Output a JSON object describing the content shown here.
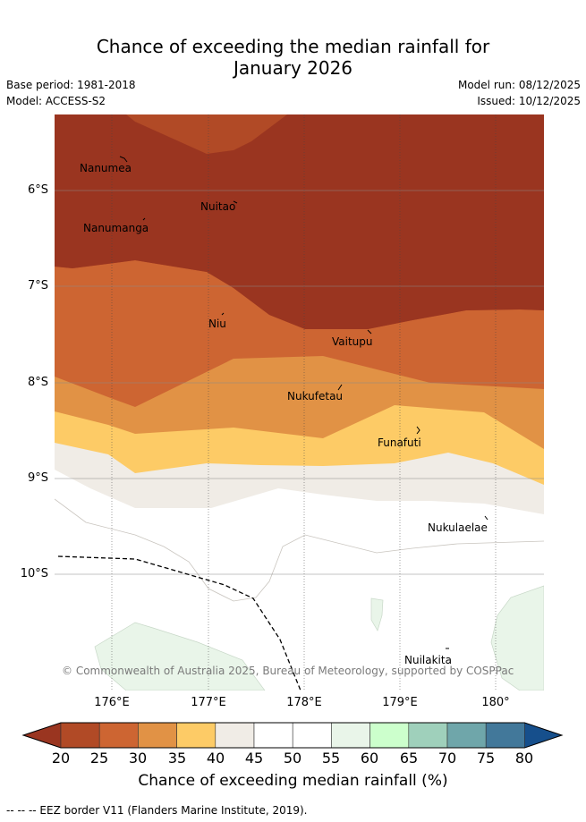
{
  "header": {
    "title_line1": "Chance of exceeding the median rainfall for",
    "title_line2": "January 2026",
    "base_period": "Base period: 1981-2018",
    "model": "Model: ACCESS-S2",
    "model_run": "Model run: 08/12/2025",
    "issued": "Issued: 10/12/2025"
  },
  "map": {
    "places": [
      {
        "name": "Nanumea"
      },
      {
        "name": "Nuitao"
      },
      {
        "name": "Nanumanga"
      },
      {
        "name": "Niu"
      },
      {
        "name": "Vaitupu"
      },
      {
        "name": "Nukufetau"
      },
      {
        "name": "Funafuti"
      },
      {
        "name": "Nukulaelae"
      },
      {
        "name": "Nuilakita"
      }
    ],
    "lat_labels": [
      "6°S",
      "7°S",
      "8°S",
      "9°S",
      "10°S"
    ],
    "lon_labels": [
      "176°E",
      "177°E",
      "178°E",
      "179°E",
      "180°"
    ],
    "credit": "© Commonwealth of Australia 2025, Bureau of Meteorology, supported by COSPPac"
  },
  "colorbar": {
    "ticks": [
      "20",
      "25",
      "30",
      "35",
      "40",
      "45",
      "50",
      "55",
      "60",
      "65",
      "70",
      "75",
      "80"
    ],
    "colors": [
      "#9a3520",
      "#b14a26",
      "#cd6532",
      "#e19245",
      "#fdcb66",
      "#f0ece6",
      "#ffffff",
      "#ffffff",
      "#e9f5e9",
      "#ccffcc",
      "#9fd0bb",
      "#6fa6aa",
      "#42789a",
      "#164f8c"
    ],
    "title": "Chance of exceeding median rainfall (%)"
  },
  "legend": {
    "eez": "--  --  -- EEZ border V11 (Flanders Marine Institute, 2019)."
  }
}
